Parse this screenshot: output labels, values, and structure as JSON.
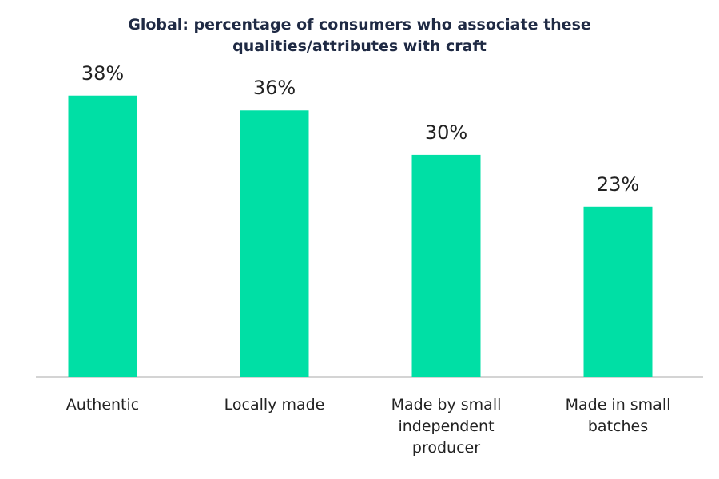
{
  "chart_data": {
    "type": "bar",
    "title": "Global: percentage of consumers who associate these qualities/attributes with craft",
    "categories": [
      "Authentic",
      "Locally made",
      "Made by small independent producer",
      "Made in small batches"
    ],
    "values": [
      38,
      36,
      30,
      23
    ],
    "value_labels": [
      "38%",
      "36%",
      "30%",
      "23%"
    ],
    "color": "#00dfa5"
  }
}
